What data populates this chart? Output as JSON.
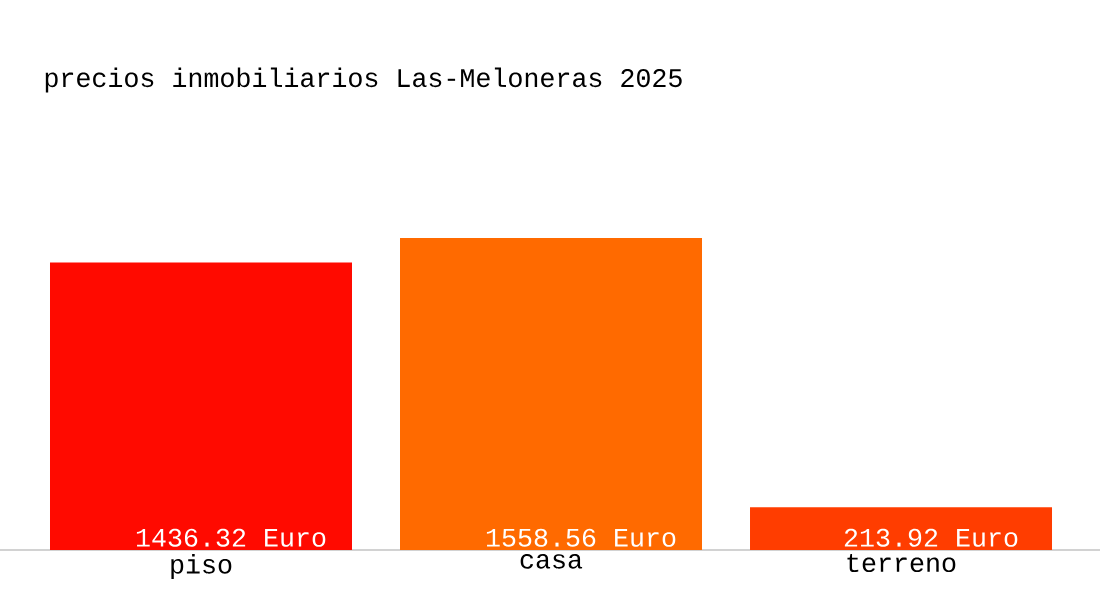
{
  "chart_data": {
    "type": "bar",
    "title": "precios inmobiliarios Las-Meloneras 2025",
    "categories": [
      "piso",
      "casa",
      "terreno"
    ],
    "values": [
      1436.32,
      1558.56,
      213.92
    ],
    "colors": [
      "#ff0a00",
      "#ff6a00",
      "#ff3d00"
    ],
    "value_labels": [
      "1436.32 Euro",
      "1558.56 Euro",
      "213.92 Euro"
    ]
  }
}
